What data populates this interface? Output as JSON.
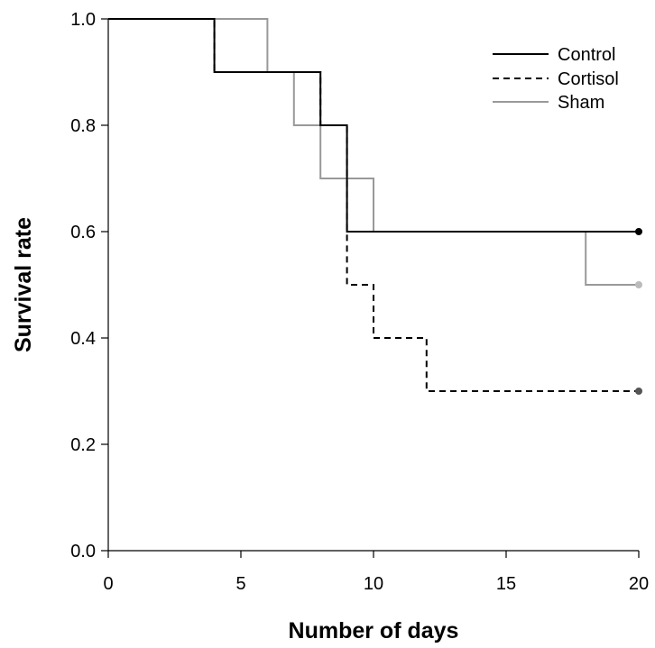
{
  "chart_data": {
    "type": "line",
    "subtype": "step (Kaplan-Meier survival curve)",
    "title": "",
    "xlabel": "Number of days",
    "ylabel": "Survival rate",
    "xlim": [
      0,
      20
    ],
    "ylim": [
      0,
      1.0
    ],
    "xticks": [
      0,
      5,
      10,
      15,
      20
    ],
    "yticks": [
      0.0,
      0.2,
      0.4,
      0.6,
      0.8,
      1.0
    ],
    "xtick_labels": [
      "0",
      "5",
      "10",
      "15",
      "20"
    ],
    "ytick_labels": [
      "0.0",
      "0.2",
      "0.4",
      "0.6",
      "0.8",
      "1.0"
    ],
    "grid": false,
    "legend_position": "top-right",
    "series": [
      {
        "name": "Control",
        "color": "#000000",
        "line_style": "solid",
        "end_marker": true,
        "x": [
          0,
          4,
          8,
          9,
          20
        ],
        "y": [
          1.0,
          0.9,
          0.8,
          0.6,
          0.6
        ]
      },
      {
        "name": "Cortisol",
        "color": "#000000",
        "line_style": "dashed",
        "end_marker": true,
        "x": [
          0,
          4,
          8,
          9,
          10,
          12,
          20
        ],
        "y": [
          1.0,
          0.9,
          0.8,
          0.5,
          0.4,
          0.3,
          0.3
        ]
      },
      {
        "name": "Sham",
        "color": "#999999",
        "line_style": "solid",
        "end_marker": true,
        "x": [
          0,
          6,
          7,
          8,
          10,
          18,
          20
        ],
        "y": [
          1.0,
          0.9,
          0.8,
          0.7,
          0.6,
          0.5,
          0.5
        ]
      }
    ]
  }
}
